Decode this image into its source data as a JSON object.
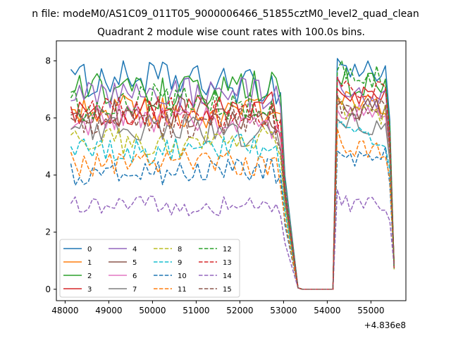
{
  "figure": {
    "suptitle": "n file: modeM0/AS1C09_011T05_9000006466_51855cztM0_level2_quad_clean",
    "offset_label": "+4.836e8"
  },
  "chart_data": {
    "type": "line",
    "title": "Quadrant 2 module wise count rates with 100.0s bins.",
    "xlabel": "",
    "ylabel": "",
    "x_offset": 483600000,
    "xlim": [
      47800,
      55800
    ],
    "ylim": [
      -0.4,
      8.7
    ],
    "xticks": [
      48000,
      49000,
      50000,
      51000,
      52000,
      53000,
      54000,
      55000
    ],
    "yticks": [
      0,
      2,
      4,
      6,
      8
    ],
    "grid": false,
    "legend": {
      "placement": "lower-left",
      "columns": 4
    },
    "segments": [
      {
        "start": 48130,
        "end": 53030,
        "dt": 100
      },
      {
        "start": 53330,
        "end": 54130,
        "dt": 100
      },
      {
        "start": 54230,
        "end": 55530,
        "dt": 100
      }
    ],
    "series": [
      {
        "name": "0",
        "color": "#1f77b4",
        "style": "solid",
        "base": 7.25,
        "post": 7.9,
        "start": 7.7
      },
      {
        "name": "1",
        "color": "#ff7f0e",
        "style": "solid",
        "base": 6.2,
        "post": 6.8,
        "start": 6.3
      },
      {
        "name": "2",
        "color": "#2ca02c",
        "style": "solid",
        "base": 7.0,
        "post": 7.4,
        "start": 6.9
      },
      {
        "name": "3",
        "color": "#d62728",
        "style": "solid",
        "base": 6.25,
        "post": 6.9,
        "start": 6.4
      },
      {
        "name": "4",
        "color": "#9467bd",
        "style": "solid",
        "base": 6.8,
        "post": 7.0,
        "start": 6.6
      },
      {
        "name": "5",
        "color": "#8c564b",
        "style": "solid",
        "base": 6.1,
        "post": 6.6,
        "start": 6.1
      },
      {
        "name": "6",
        "color": "#e377c2",
        "style": "solid",
        "base": 5.9,
        "post": 6.4,
        "start": 5.6
      },
      {
        "name": "7",
        "color": "#7f7f7f",
        "style": "solid",
        "base": 5.6,
        "post": 6.0,
        "start": 5.6
      },
      {
        "name": "8",
        "color": "#bcbd22",
        "style": "dashed",
        "base": 5.2,
        "post": 6.4,
        "start": 5.4
      },
      {
        "name": "9",
        "color": "#17becf",
        "style": "dashed",
        "base": 4.9,
        "post": 5.6,
        "start": 5.0
      },
      {
        "name": "10",
        "color": "#1f77b4",
        "style": "dashed",
        "base": 4.1,
        "post": 4.9,
        "start": 4.4
      },
      {
        "name": "11",
        "color": "#ff7f0e",
        "style": "dashed",
        "base": 4.4,
        "post": 5.2,
        "start": 4.8
      },
      {
        "name": "12",
        "color": "#2ca02c",
        "style": "dashed",
        "base": 6.5,
        "post": 7.7,
        "start": 6.7
      },
      {
        "name": "13",
        "color": "#d62728",
        "style": "dashed",
        "base": 6.2,
        "post": 7.2,
        "start": 6.2
      },
      {
        "name": "14",
        "color": "#9467bd",
        "style": "dashed",
        "base": 2.95,
        "post": 3.2,
        "start": 3.0
      },
      {
        "name": "15",
        "color": "#8c564b",
        "style": "dashed",
        "base": 5.9,
        "post": 6.6,
        "start": 6.0
      }
    ]
  }
}
